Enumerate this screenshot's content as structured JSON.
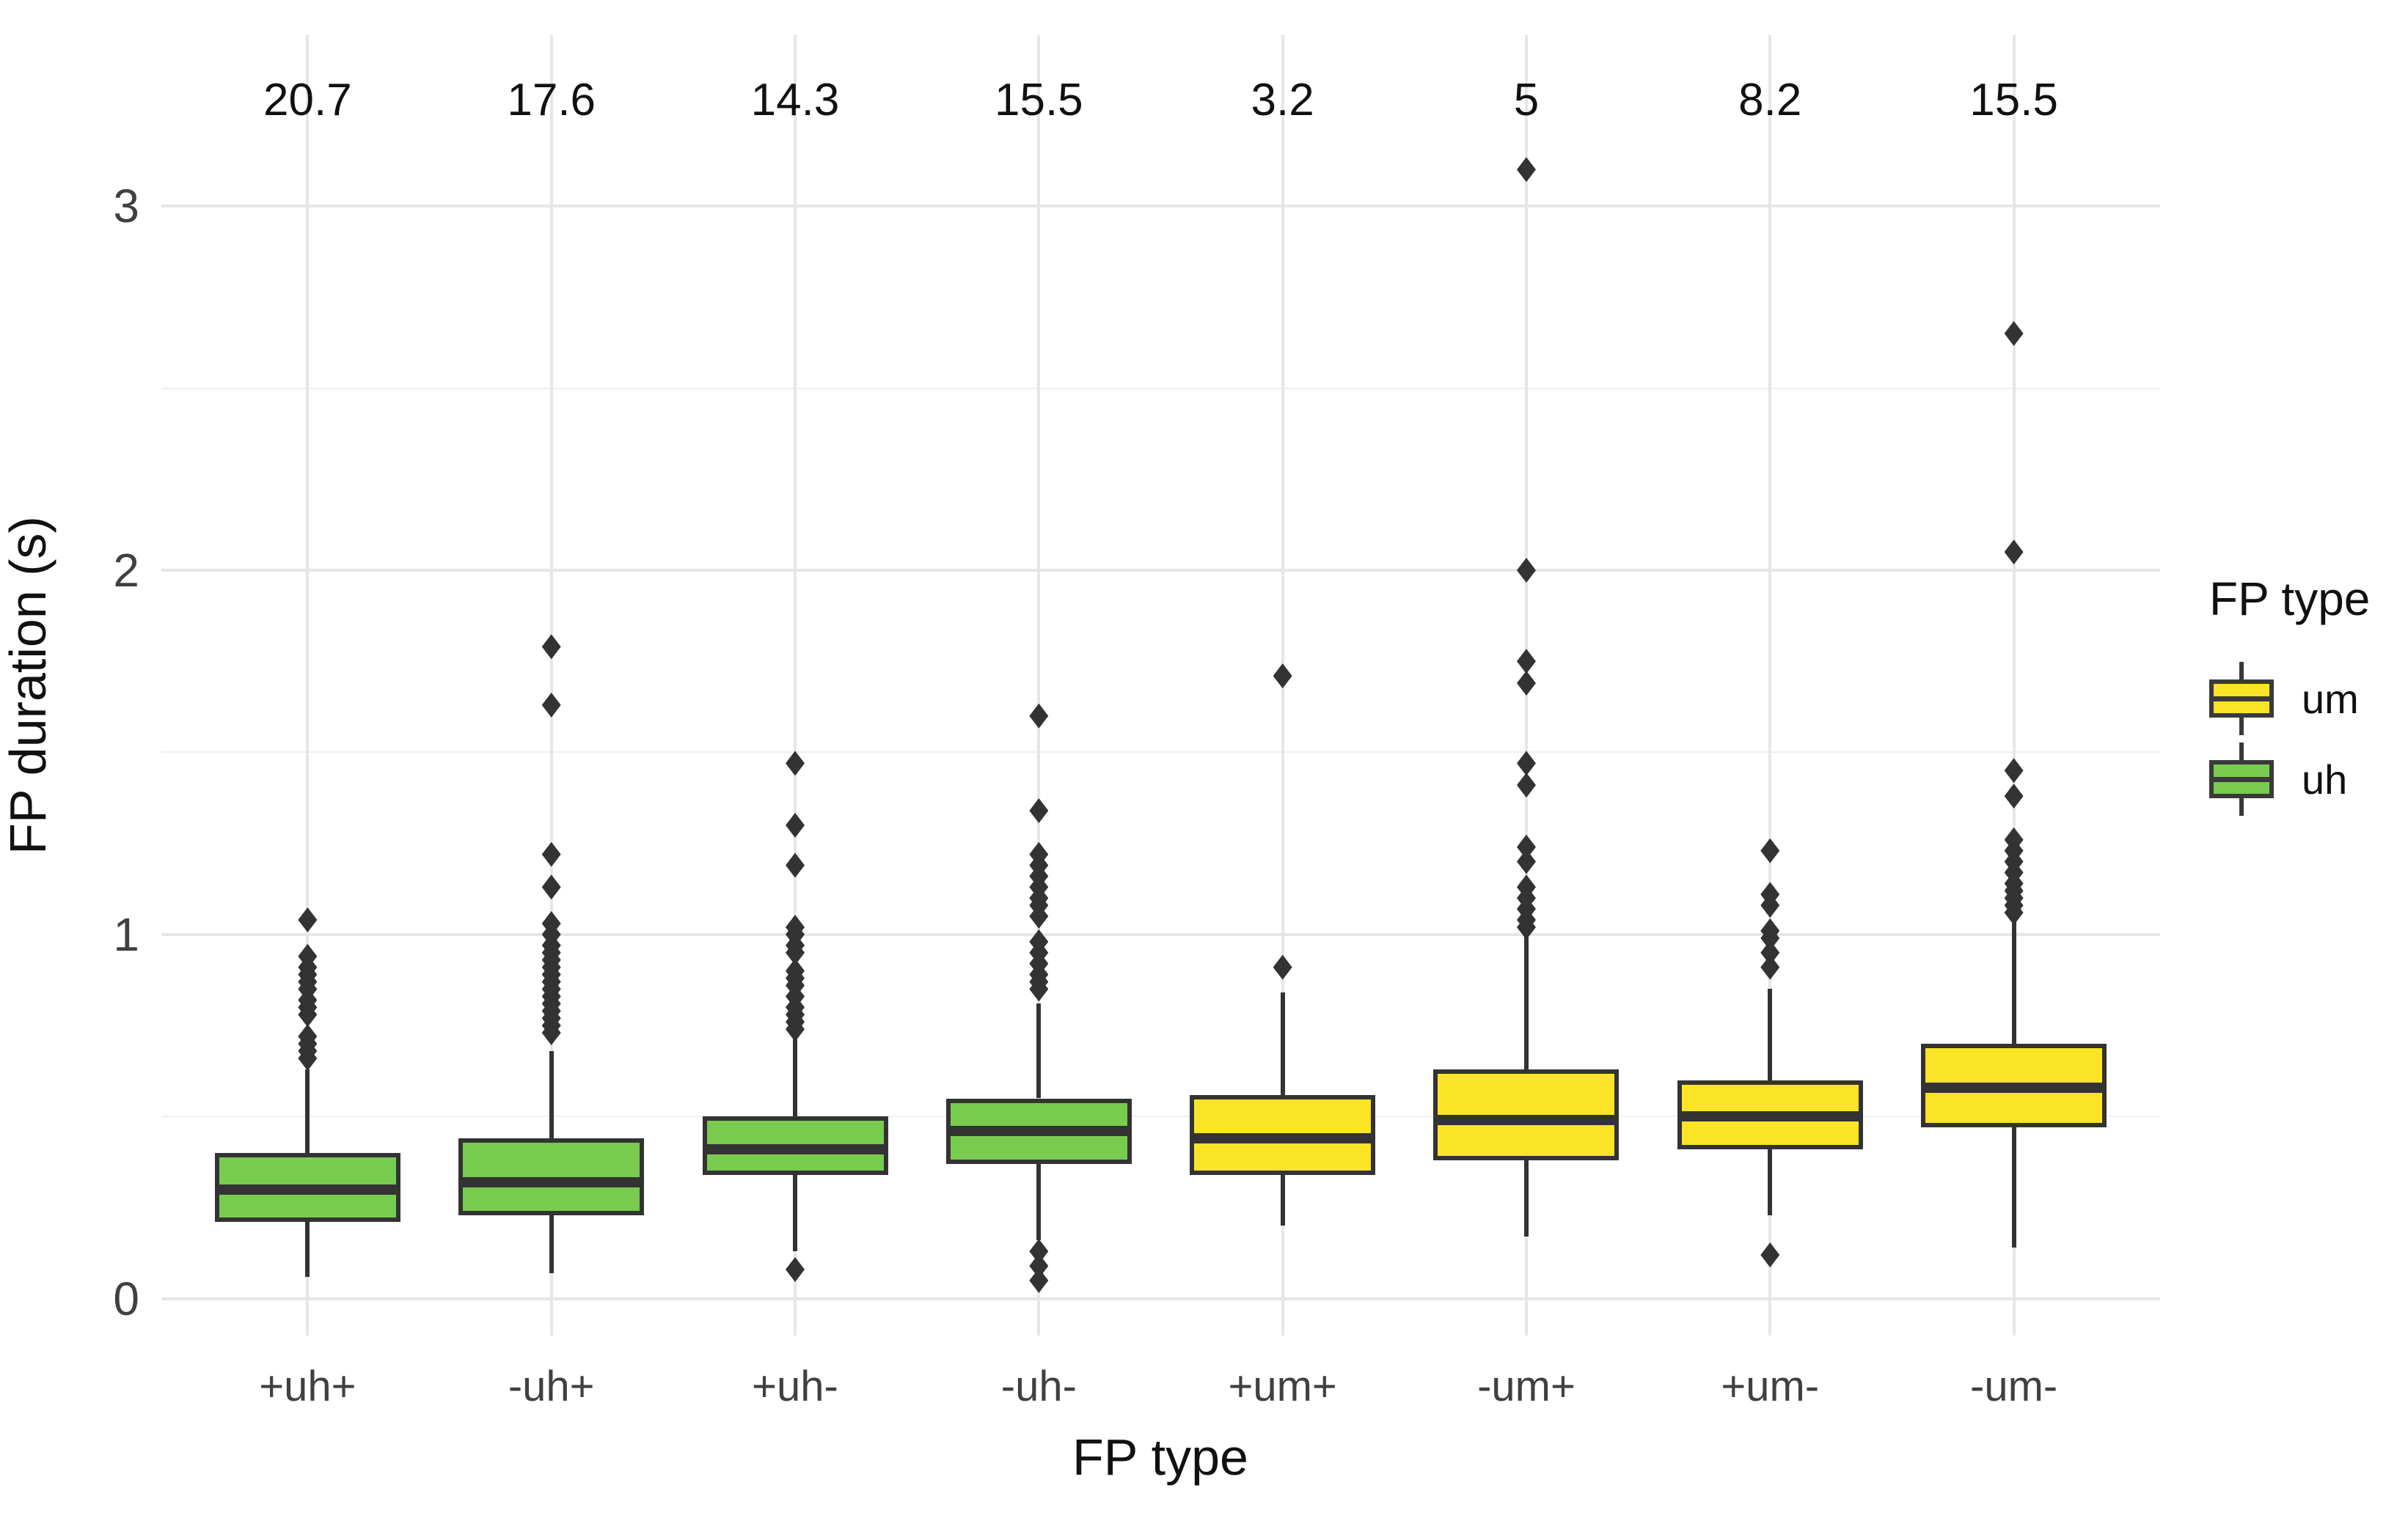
{
  "chart_data": {
    "type": "boxplot",
    "xlabel": "FP type",
    "ylabel": "FP duration (s)",
    "ylim": [
      -0.1,
      3.45
    ],
    "yticks": [
      0,
      1,
      2,
      3
    ],
    "yminor": [
      0.5,
      1.5,
      2.5
    ],
    "grid": "major horizontal and vertical at category centers, minor horizontal at halves",
    "legend": {
      "title": "FP type",
      "position": "right",
      "entries": [
        {
          "label": "um",
          "color": "#fbe426"
        },
        {
          "label": "uh",
          "color": "#79cb4f"
        }
      ]
    },
    "categories": [
      "+uh+",
      "-uh+",
      "+uh-",
      "-uh-",
      "+um+",
      "-um+",
      "+um-",
      "-um-"
    ],
    "counts_above": [
      "20.7",
      "17.6",
      "14.3",
      "15.5",
      "3.2",
      "5",
      "8.2",
      "15.5"
    ],
    "counts_y_value": 3.29,
    "series": [
      {
        "category": "+uh+",
        "group": "uh",
        "fill": "#79cb4f",
        "whisker_low": 0.06,
        "q1": 0.21,
        "median": 0.3,
        "q3": 0.4,
        "whisker_high": 0.63,
        "outliers_low": [],
        "outliers_high": [
          0.66,
          0.68,
          0.7,
          0.72,
          0.78,
          0.8,
          0.82,
          0.85,
          0.87,
          0.89,
          0.91,
          0.94,
          1.04
        ]
      },
      {
        "category": "-uh+",
        "group": "uh",
        "fill": "#79cb4f",
        "whisker_low": 0.07,
        "q1": 0.23,
        "median": 0.32,
        "q3": 0.44,
        "whisker_high": 0.68,
        "outliers_low": [],
        "outliers_high": [
          0.73,
          0.75,
          0.77,
          0.79,
          0.81,
          0.83,
          0.85,
          0.87,
          0.89,
          0.91,
          0.93,
          0.95,
          0.97,
          1.0,
          1.03,
          1.13,
          1.22,
          1.63,
          1.79
        ]
      },
      {
        "category": "+uh-",
        "group": "uh",
        "fill": "#79cb4f",
        "whisker_low": 0.13,
        "q1": 0.34,
        "median": 0.41,
        "q3": 0.5,
        "whisker_high": 0.73,
        "outliers_low": [
          0.08
        ],
        "outliers_high": [
          0.74,
          0.76,
          0.78,
          0.8,
          0.83,
          0.86,
          0.88,
          0.9,
          0.95,
          0.97,
          1.0,
          1.02,
          1.19,
          1.3,
          1.47
        ]
      },
      {
        "category": "-uh-",
        "group": "uh",
        "fill": "#79cb4f",
        "whisker_low": 0.16,
        "q1": 0.37,
        "median": 0.46,
        "q3": 0.55,
        "whisker_high": 0.81,
        "outliers_low": [
          0.05,
          0.09,
          0.13
        ],
        "outliers_high": [
          0.85,
          0.87,
          0.89,
          0.92,
          0.95,
          0.98,
          1.05,
          1.08,
          1.1,
          1.13,
          1.16,
          1.19,
          1.22,
          1.34,
          1.6
        ]
      },
      {
        "category": "+um+",
        "group": "um",
        "fill": "#fbe426",
        "whisker_low": 0.2,
        "q1": 0.34,
        "median": 0.44,
        "q3": 0.56,
        "whisker_high": 0.84,
        "outliers_low": [],
        "outliers_high": [
          0.91,
          1.71
        ]
      },
      {
        "category": "-um+",
        "group": "um",
        "fill": "#fbe426",
        "whisker_low": 0.17,
        "q1": 0.38,
        "median": 0.49,
        "q3": 0.63,
        "whisker_high": 1.0,
        "outliers_low": [],
        "outliers_high": [
          1.02,
          1.04,
          1.07,
          1.1,
          1.13,
          1.2,
          1.24,
          1.41,
          1.47,
          1.69,
          1.75,
          2.0,
          3.1
        ]
      },
      {
        "category": "+um-",
        "group": "um",
        "fill": "#fbe426",
        "whisker_low": 0.23,
        "q1": 0.41,
        "median": 0.5,
        "q3": 0.6,
        "whisker_high": 0.85,
        "outliers_low": [
          0.12
        ],
        "outliers_high": [
          0.91,
          0.95,
          0.99,
          1.01,
          1.08,
          1.11,
          1.23
        ]
      },
      {
        "category": "-um-",
        "group": "um",
        "fill": "#fbe426",
        "whisker_low": 0.14,
        "q1": 0.47,
        "median": 0.58,
        "q3": 0.7,
        "whisker_high": 1.04,
        "outliers_low": [],
        "outliers_high": [
          1.06,
          1.08,
          1.1,
          1.12,
          1.14,
          1.17,
          1.2,
          1.23,
          1.26,
          1.38,
          1.45,
          2.05,
          2.65
        ]
      }
    ]
  },
  "colors": {
    "box_stroke": "#333333",
    "grid_major": "#e6e6e6",
    "grid_minor": "#efefef",
    "tick_text": "#404040",
    "title_text": "#111111",
    "background": "#ffffff"
  }
}
